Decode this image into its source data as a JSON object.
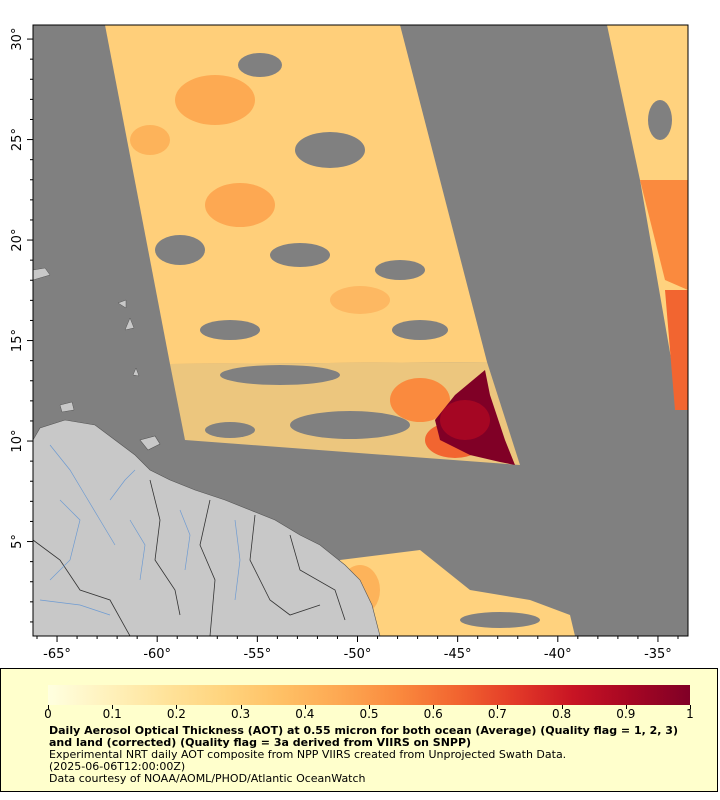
{
  "map": {
    "lon_ticks": [
      "-65°",
      "-60°",
      "-55°",
      "-50°",
      "-45°",
      "-40°",
      "-35°"
    ],
    "lat_ticks": [
      "5°",
      "10°",
      "15°",
      "20°",
      "25°",
      "30°"
    ],
    "lon_range": [
      -66.2,
      -33.5
    ],
    "lat_range": [
      0.3,
      30.7
    ],
    "colors": {
      "nodata": "#808080",
      "land": "#c8c8c8",
      "rivers": "#6e9bd2",
      "borders": "#333333"
    }
  },
  "colorbar": {
    "min": 0,
    "max": 1,
    "tick_labels": [
      "0",
      "0.1",
      "0.2",
      "0.3",
      "0.4",
      "0.5",
      "0.6",
      "0.7",
      "0.8",
      "0.9",
      "1"
    ],
    "colors": [
      "#ffffe0",
      "#fff2bd",
      "#ffe39b",
      "#ffd47e",
      "#ffc065",
      "#fda852",
      "#fa8a3e",
      "#f26530",
      "#e33a28",
      "#c81424",
      "#a50623",
      "#800026"
    ]
  },
  "caption": {
    "title": "Daily Aerosol Optical Thickness (AOT) at 0.55 micron for both ocean (Average) (Quality flag = 1, 2, 3) and land (corrected) (Quality flag = 3a derived from VIIRS on SNPP)",
    "line1": "Experimental NRT daily AOT composite from NPP VIIRS created from Unprojected Swath Data.",
    "line2": "(2025-06-06T12:00:00Z)",
    "line3": "Data courtesy of NOAA/AOML/PHOD/Atlantic OceanWatch"
  }
}
